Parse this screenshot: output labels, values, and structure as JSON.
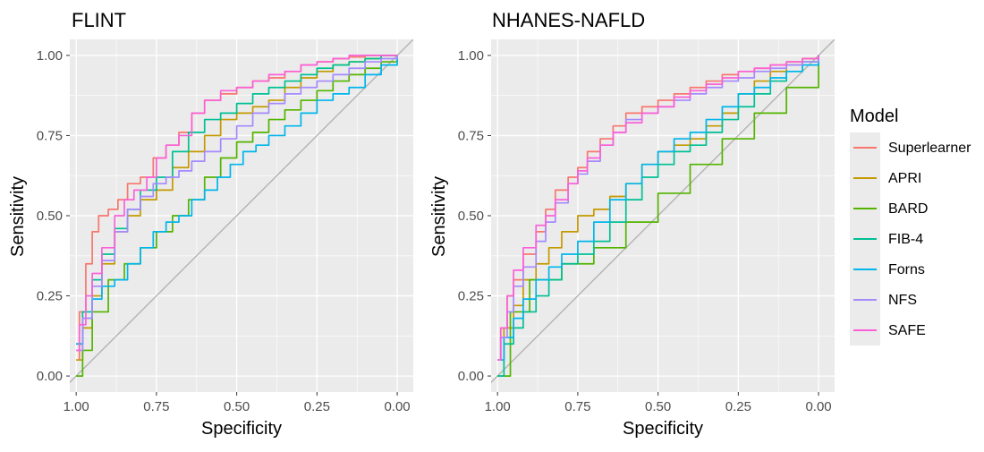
{
  "chart_data": [
    {
      "type": "line",
      "title": "FLINT",
      "xlabel": "Specificity",
      "ylabel": "Sensitivity",
      "x_reversed": true,
      "xlim": [
        1.02,
        -0.05
      ],
      "ylim": [
        -0.05,
        1.05
      ],
      "xticks": [
        1.0,
        0.75,
        0.5,
        0.25,
        0.0
      ],
      "xtick_labels": [
        "1.00",
        "0.75",
        "0.50",
        "0.25",
        "0.00"
      ],
      "yticks": [
        0.0,
        0.25,
        0.5,
        0.75,
        1.0
      ],
      "ytick_labels": [
        "0.00",
        "0.25",
        "0.50",
        "0.75",
        "1.00"
      ],
      "grid": true,
      "reference_line": "diagonal",
      "series": [
        {
          "name": "Superlearner",
          "x": [
            1.0,
            0.99,
            0.97,
            0.95,
            0.93,
            0.9,
            0.87,
            0.84,
            0.8,
            0.76,
            0.72,
            0.68,
            0.64,
            0.6,
            0.55,
            0.5,
            0.45,
            0.4,
            0.35,
            0.3,
            0.25,
            0.2,
            0.15,
            0.1,
            0.05,
            0.0
          ],
          "y": [
            0.05,
            0.2,
            0.35,
            0.45,
            0.5,
            0.52,
            0.55,
            0.6,
            0.62,
            0.68,
            0.72,
            0.76,
            0.82,
            0.86,
            0.88,
            0.9,
            0.92,
            0.93,
            0.95,
            0.97,
            0.98,
            0.99,
            0.995,
            1.0,
            1.0,
            1.0
          ]
        },
        {
          "name": "APRI",
          "x": [
            1.0,
            0.98,
            0.95,
            0.92,
            0.88,
            0.84,
            0.8,
            0.75,
            0.7,
            0.65,
            0.6,
            0.55,
            0.5,
            0.45,
            0.4,
            0.35,
            0.3,
            0.25,
            0.2,
            0.15,
            0.1,
            0.05,
            0.0
          ],
          "y": [
            0.05,
            0.15,
            0.25,
            0.35,
            0.45,
            0.5,
            0.55,
            0.58,
            0.65,
            0.7,
            0.75,
            0.8,
            0.82,
            0.84,
            0.86,
            0.9,
            0.93,
            0.95,
            0.97,
            0.98,
            0.99,
            1.0,
            1.0
          ]
        },
        {
          "name": "BARD",
          "x": [
            1.0,
            0.98,
            0.95,
            0.9,
            0.85,
            0.8,
            0.75,
            0.7,
            0.65,
            0.6,
            0.55,
            0.5,
            0.45,
            0.4,
            0.35,
            0.3,
            0.25,
            0.2,
            0.15,
            0.1,
            0.05,
            0.0
          ],
          "y": [
            0.0,
            0.08,
            0.2,
            0.3,
            0.35,
            0.4,
            0.45,
            0.5,
            0.55,
            0.62,
            0.68,
            0.73,
            0.76,
            0.8,
            0.83,
            0.86,
            0.89,
            0.92,
            0.94,
            0.96,
            0.98,
            1.0
          ]
        },
        {
          "name": "FIB-4",
          "x": [
            1.0,
            0.98,
            0.95,
            0.92,
            0.88,
            0.84,
            0.8,
            0.75,
            0.7,
            0.65,
            0.6,
            0.55,
            0.5,
            0.45,
            0.4,
            0.35,
            0.3,
            0.25,
            0.2,
            0.15,
            0.1,
            0.05,
            0.0
          ],
          "y": [
            0.1,
            0.2,
            0.3,
            0.38,
            0.46,
            0.52,
            0.58,
            0.62,
            0.7,
            0.76,
            0.8,
            0.82,
            0.85,
            0.88,
            0.9,
            0.92,
            0.94,
            0.96,
            0.97,
            0.98,
            0.99,
            1.0,
            1.0
          ]
        },
        {
          "name": "Forns",
          "x": [
            1.0,
            0.98,
            0.95,
            0.92,
            0.88,
            0.84,
            0.8,
            0.76,
            0.72,
            0.68,
            0.64,
            0.6,
            0.56,
            0.52,
            0.48,
            0.44,
            0.4,
            0.35,
            0.3,
            0.25,
            0.2,
            0.15,
            0.1,
            0.05,
            0.0
          ],
          "y": [
            0.1,
            0.18,
            0.24,
            0.28,
            0.3,
            0.35,
            0.4,
            0.45,
            0.48,
            0.5,
            0.55,
            0.58,
            0.62,
            0.66,
            0.7,
            0.72,
            0.75,
            0.78,
            0.82,
            0.86,
            0.88,
            0.9,
            0.94,
            0.97,
            1.0
          ]
        },
        {
          "name": "NFS",
          "x": [
            1.0,
            0.98,
            0.95,
            0.92,
            0.88,
            0.84,
            0.8,
            0.76,
            0.72,
            0.68,
            0.64,
            0.6,
            0.55,
            0.5,
            0.45,
            0.4,
            0.35,
            0.3,
            0.25,
            0.2,
            0.15,
            0.1,
            0.05,
            0.0
          ],
          "y": [
            0.08,
            0.18,
            0.28,
            0.36,
            0.45,
            0.52,
            0.56,
            0.6,
            0.62,
            0.64,
            0.67,
            0.7,
            0.74,
            0.78,
            0.82,
            0.85,
            0.88,
            0.9,
            0.92,
            0.94,
            0.96,
            0.98,
            0.99,
            1.0
          ]
        },
        {
          "name": "SAFE",
          "x": [
            1.0,
            0.99,
            0.97,
            0.95,
            0.92,
            0.88,
            0.85,
            0.82,
            0.78,
            0.75,
            0.72,
            0.68,
            0.64,
            0.6,
            0.55,
            0.5,
            0.45,
            0.4,
            0.35,
            0.3,
            0.25,
            0.2,
            0.15,
            0.1,
            0.05,
            0.0
          ],
          "y": [
            0.08,
            0.16,
            0.25,
            0.32,
            0.4,
            0.5,
            0.55,
            0.58,
            0.62,
            0.68,
            0.72,
            0.75,
            0.82,
            0.86,
            0.89,
            0.9,
            0.92,
            0.94,
            0.95,
            0.97,
            0.98,
            0.99,
            1.0,
            1.0,
            1.0,
            1.0
          ]
        }
      ]
    },
    {
      "type": "line",
      "title": "NHANES-NAFLD",
      "xlabel": "Specificity",
      "ylabel": "Sensitivity",
      "x_reversed": true,
      "xlim": [
        1.02,
        -0.05
      ],
      "ylim": [
        -0.05,
        1.05
      ],
      "xticks": [
        1.0,
        0.75,
        0.5,
        0.25,
        0.0
      ],
      "xtick_labels": [
        "1.00",
        "0.75",
        "0.50",
        "0.25",
        "0.00"
      ],
      "yticks": [
        0.0,
        0.25,
        0.5,
        0.75,
        1.0
      ],
      "ytick_labels": [
        "0.00",
        "0.25",
        "0.50",
        "0.75",
        "1.00"
      ],
      "grid": true,
      "reference_line": "diagonal",
      "series": [
        {
          "name": "Superlearner",
          "x": [
            1.0,
            0.99,
            0.97,
            0.95,
            0.92,
            0.88,
            0.85,
            0.82,
            0.78,
            0.75,
            0.72,
            0.68,
            0.64,
            0.6,
            0.55,
            0.5,
            0.45,
            0.4,
            0.35,
            0.3,
            0.25,
            0.2,
            0.15,
            0.1,
            0.05,
            0.0
          ],
          "y": [
            0.05,
            0.15,
            0.25,
            0.3,
            0.38,
            0.45,
            0.52,
            0.58,
            0.62,
            0.65,
            0.7,
            0.74,
            0.78,
            0.82,
            0.84,
            0.86,
            0.88,
            0.9,
            0.92,
            0.94,
            0.95,
            0.96,
            0.97,
            0.98,
            0.99,
            1.0
          ]
        },
        {
          "name": "APRI",
          "x": [
            1.0,
            0.98,
            0.95,
            0.92,
            0.88,
            0.84,
            0.8,
            0.75,
            0.7,
            0.65,
            0.6,
            0.55,
            0.5,
            0.45,
            0.4,
            0.35,
            0.3,
            0.25,
            0.2,
            0.15,
            0.1,
            0.05,
            0.0
          ],
          "y": [
            0.05,
            0.15,
            0.22,
            0.3,
            0.35,
            0.4,
            0.45,
            0.5,
            0.52,
            0.56,
            0.6,
            0.66,
            0.7,
            0.72,
            0.74,
            0.78,
            0.82,
            0.88,
            0.92,
            0.95,
            0.97,
            0.99,
            1.0
          ]
        },
        {
          "name": "BARD",
          "x": [
            1.0,
            0.96,
            0.9,
            0.8,
            0.7,
            0.6,
            0.5,
            0.4,
            0.3,
            0.2,
            0.1,
            0.0
          ],
          "y": [
            0.0,
            0.2,
            0.3,
            0.35,
            0.4,
            0.48,
            0.57,
            0.66,
            0.74,
            0.82,
            0.9,
            1.0
          ]
        },
        {
          "name": "FIB-4",
          "x": [
            1.0,
            0.98,
            0.95,
            0.92,
            0.88,
            0.84,
            0.8,
            0.75,
            0.7,
            0.65,
            0.6,
            0.55,
            0.5,
            0.45,
            0.4,
            0.35,
            0.3,
            0.25,
            0.2,
            0.15,
            0.1,
            0.05,
            0.0
          ],
          "y": [
            0.0,
            0.1,
            0.15,
            0.2,
            0.25,
            0.3,
            0.35,
            0.38,
            0.42,
            0.48,
            0.55,
            0.62,
            0.66,
            0.7,
            0.72,
            0.76,
            0.8,
            0.84,
            0.88,
            0.92,
            0.95,
            0.98,
            1.0
          ]
        },
        {
          "name": "Forns",
          "x": [
            1.0,
            0.98,
            0.95,
            0.92,
            0.88,
            0.84,
            0.8,
            0.75,
            0.7,
            0.65,
            0.6,
            0.55,
            0.5,
            0.45,
            0.4,
            0.35,
            0.3,
            0.25,
            0.2,
            0.15,
            0.1,
            0.05,
            0.0
          ],
          "y": [
            0.05,
            0.12,
            0.18,
            0.24,
            0.3,
            0.34,
            0.38,
            0.42,
            0.48,
            0.55,
            0.6,
            0.66,
            0.7,
            0.74,
            0.76,
            0.8,
            0.84,
            0.88,
            0.9,
            0.93,
            0.95,
            0.97,
            1.0
          ]
        },
        {
          "name": "NFS",
          "x": [
            1.0,
            0.99,
            0.97,
            0.95,
            0.92,
            0.88,
            0.85,
            0.82,
            0.78,
            0.75,
            0.72,
            0.68,
            0.64,
            0.6,
            0.55,
            0.5,
            0.45,
            0.4,
            0.35,
            0.3,
            0.25,
            0.2,
            0.15,
            0.1,
            0.05,
            0.0
          ],
          "y": [
            0.05,
            0.12,
            0.2,
            0.28,
            0.34,
            0.42,
            0.48,
            0.54,
            0.6,
            0.63,
            0.67,
            0.72,
            0.76,
            0.8,
            0.82,
            0.84,
            0.86,
            0.88,
            0.9,
            0.92,
            0.93,
            0.95,
            0.96,
            0.97,
            0.98,
            1.0
          ]
        },
        {
          "name": "SAFE",
          "x": [
            1.0,
            0.99,
            0.97,
            0.95,
            0.92,
            0.88,
            0.85,
            0.82,
            0.78,
            0.75,
            0.72,
            0.68,
            0.64,
            0.6,
            0.55,
            0.5,
            0.45,
            0.4,
            0.35,
            0.3,
            0.25,
            0.2,
            0.15,
            0.1,
            0.05,
            0.0
          ],
          "y": [
            0.05,
            0.15,
            0.25,
            0.33,
            0.4,
            0.47,
            0.5,
            0.55,
            0.6,
            0.64,
            0.68,
            0.72,
            0.76,
            0.79,
            0.82,
            0.84,
            0.87,
            0.89,
            0.91,
            0.93,
            0.95,
            0.96,
            0.97,
            0.98,
            0.99,
            1.0
          ]
        }
      ]
    }
  ],
  "legend": {
    "title": "Model",
    "position": "right",
    "items": [
      {
        "label": "Superlearner",
        "color": "#F8766D"
      },
      {
        "label": "APRI",
        "color": "#C49A00"
      },
      {
        "label": "BARD",
        "color": "#53B400"
      },
      {
        "label": "FIB-4",
        "color": "#00C094"
      },
      {
        "label": "Forns",
        "color": "#00B6EB"
      },
      {
        "label": "NFS",
        "color": "#A58AFF"
      },
      {
        "label": "SAFE",
        "color": "#FB61D7"
      }
    ]
  },
  "colors": {
    "panel_background": "#EBEBEB",
    "grid": "#FFFFFF",
    "reference_line": "#B3B3B3",
    "text": "#000000",
    "tick_text": "#4D4D4D"
  }
}
